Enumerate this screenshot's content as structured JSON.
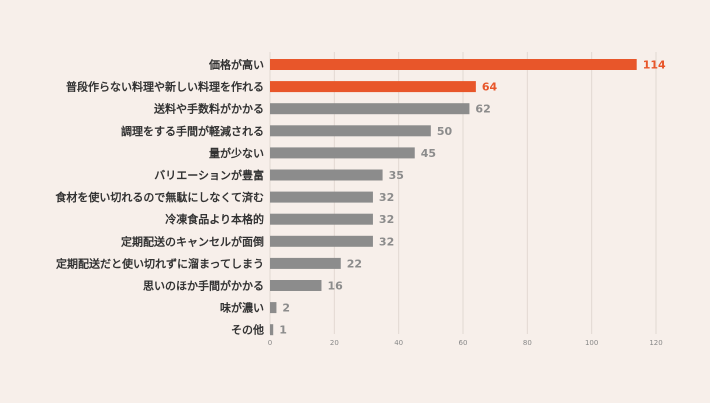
{
  "chart_data": {
    "type": "bar",
    "orientation": "horizontal",
    "categories": [
      "価格が高い",
      "普段作らない料理や新しい料理を作れる",
      "送料や手数料がかかる",
      "調理をする手間が軽減される",
      "量が少ない",
      "バリエーションが豊富",
      "食材を使い切れるので無駄にしなくて済む",
      "冷凍食品より本格的",
      "定期配送のキャンセルが面倒",
      "定期配送だと使い切れずに溜まってしまう",
      "思いのほか手間がかかる",
      "味が濃い",
      "その他"
    ],
    "values": [
      114,
      64,
      62,
      50,
      45,
      35,
      32,
      32,
      32,
      22,
      16,
      2,
      1
    ],
    "highlight_count": 2,
    "xlim": [
      0,
      120
    ],
    "xticks": [
      0,
      20,
      40,
      60,
      80,
      100,
      120
    ],
    "grid": "vertical",
    "colors": {
      "highlight": "#e8562a",
      "default": "#8c8c8c",
      "grid": "#e2d8d2",
      "background": "#f7efea"
    }
  }
}
